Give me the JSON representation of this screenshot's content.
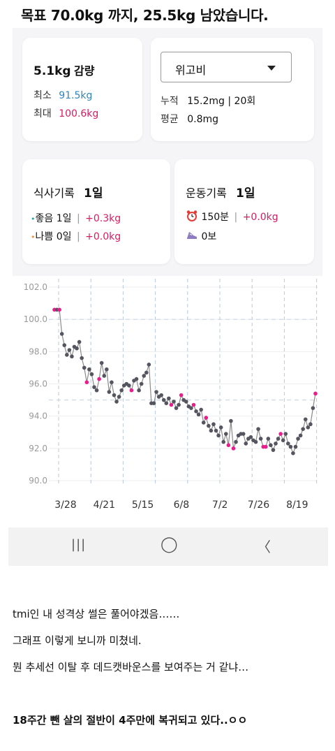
{
  "header": {
    "title": "목표 70.0kg 까지, 25.5kg 남았습니다."
  },
  "weight_card": {
    "loss_value": "5.1kg",
    "loss_label": "감량",
    "min_label": "최소",
    "min_value": "91.5kg",
    "max_label": "최대",
    "max_value": "100.6kg"
  },
  "drug_card": {
    "select_value": "위고비",
    "total_label": "누적",
    "total_value": "15.2mg | 20회",
    "avg_label": "평균",
    "avg_value": "0.8mg"
  },
  "meal_card": {
    "title": "식사기록",
    "days": "1일",
    "good_dot": "•",
    "good_label": "좋음",
    "good_days": "1일",
    "good_sep": "|",
    "good_delta": "+0.3kg",
    "bad_dot": "•",
    "bad_label": "나쁨",
    "bad_days": "0일",
    "bad_sep": "|",
    "bad_delta": "+0.0kg"
  },
  "exercise_card": {
    "title": "운동기록",
    "days": "1일",
    "time_value": "150분",
    "time_sep": "|",
    "time_delta": "+0.0kg",
    "steps_value": "0보"
  },
  "icons": {
    "alarm": "alarm-clock-icon",
    "shoe": "sneaker-icon"
  },
  "colors": {
    "accent": "#d81b60",
    "blue": "#2e86c1",
    "good_dot": "#26a69a",
    "bad_dot": "#ef8a3c",
    "line": "#8a8a8a",
    "point": "#555560",
    "marked_point": "#e91e8c"
  },
  "chart_data": {
    "type": "line",
    "ylim": [
      90,
      102
    ],
    "yticks": [
      "102.0",
      "100.0",
      "98.0",
      "96.0",
      "94.0",
      "92.0",
      "90.0"
    ],
    "xticks": [
      "3/28",
      "4/21",
      "5/15",
      "6/8",
      "7/2",
      "7/26",
      "8/19"
    ],
    "reference_lines": [
      100.0,
      95.0
    ],
    "series": [
      {
        "values": [
          100.6,
          100.6,
          100.6,
          99.1,
          98.4,
          97.8,
          98.1,
          97.7,
          98.3,
          98.2,
          98.6,
          97.6,
          97.0,
          96.1,
          96.9,
          96.6,
          95.8,
          95.6,
          96.3,
          97.3,
          96.5,
          96.9,
          95.5,
          96.1,
          95.3,
          94.9,
          95.2,
          95.6,
          95.9,
          96.0,
          95.9,
          95.6,
          96.2,
          96.3,
          95.6,
          96.0,
          96.5,
          96.7,
          97.2,
          94.8,
          94.8,
          95.5,
          95.2,
          95.3,
          95.0,
          94.8,
          95.1,
          94.7,
          94.9,
          94.5,
          94.7,
          95.3,
          95.0,
          94.9,
          94.6,
          94.5,
          94.7,
          94.3,
          94.1,
          94.4,
          93.6,
          93.9,
          93.4,
          93.1,
          93.5,
          93.1,
          92.8,
          93.3,
          92.4,
          92.9,
          92.2,
          93.7,
          92.0,
          92.4,
          92.8,
          92.9,
          92.9,
          92.3,
          92.6,
          92.7,
          92.5,
          92.4,
          93.2,
          92.6,
          92.1,
          92.1,
          92.6,
          92.2,
          91.9,
          92.3,
          92.6,
          92.9,
          92.5,
          92.9,
          92.3,
          92.1,
          91.7,
          92.1,
          92.6,
          92.8,
          93.2,
          93.8,
          93.3,
          93.5,
          94.5,
          95.4
        ]
      }
    ],
    "marked_indices": [
      0,
      2,
      13,
      18,
      31,
      47,
      51,
      56,
      61,
      70,
      72,
      84,
      85,
      91,
      105
    ]
  },
  "navbar": {
    "recent": "|||",
    "home": "◯",
    "back": "〈"
  },
  "captions": [
    "tmi인 내 성격상 썰은 풀어야겠음……",
    "그래프 이렇게 보니까 미쳤네.",
    "뭔 추세선 이탈 후 데드캣바운스를 보여주는 거 같냐…",
    "18주간 뺀 살의 절반이 4주만에 복귀되고 있다..ㅇㅇ"
  ]
}
